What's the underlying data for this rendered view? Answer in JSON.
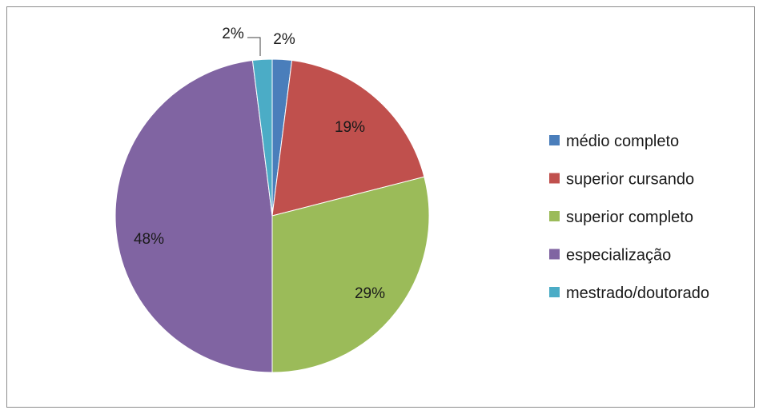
{
  "chart_data": {
    "type": "pie",
    "start_angle_deg": 0,
    "direction": "clockwise",
    "grid": false,
    "legend_position": "right",
    "slices": [
      {
        "label": "médio completo",
        "value": 2,
        "display": "2%",
        "color": "#4a7ebb"
      },
      {
        "label": "superior cursando",
        "value": 19,
        "display": "19%",
        "color": "#c0504d"
      },
      {
        "label": "superior completo",
        "value": 29,
        "display": "29%",
        "color": "#9bbb59"
      },
      {
        "label": "especialização",
        "value": 48,
        "display": "48%",
        "color": "#8064a2"
      },
      {
        "label": "mestrado/doutorado",
        "value": 2,
        "display": "2%",
        "color": "#4bacc6"
      }
    ]
  }
}
